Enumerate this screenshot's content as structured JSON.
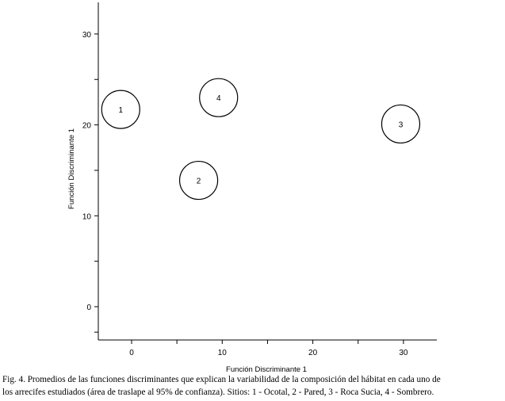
{
  "chart_data": {
    "type": "scatter",
    "xlabel": "Función Discriminante 1",
    "ylabel": "Función Discriminante 1",
    "xlim": [
      -3.5,
      33.5
    ],
    "ylim": [
      -3.5,
      33.5
    ],
    "x_ticks": [
      0,
      10,
      20,
      30
    ],
    "y_ticks": [
      0,
      10,
      20,
      30
    ],
    "grid": false,
    "points": [
      {
        "label": "1",
        "x": -1.2,
        "y": 21.7
      },
      {
        "label": "2",
        "x": 7.4,
        "y": 13.9
      },
      {
        "label": "3",
        "x": 29.7,
        "y": 20.1
      },
      {
        "label": "4",
        "x": 9.6,
        "y": 23.0
      }
    ]
  },
  "caption": {
    "line1": "Fig. 4. Promedios de las funciones discriminantes que explican la variabilidad de la composición del hábitat en cada uno de",
    "line2": "los arrecifes estudiados (área de traslape al 95% de confianza). Sitios: 1 - Ocotal, 2 - Pared, 3 - Roca Sucia, 4 - Sombrero."
  }
}
